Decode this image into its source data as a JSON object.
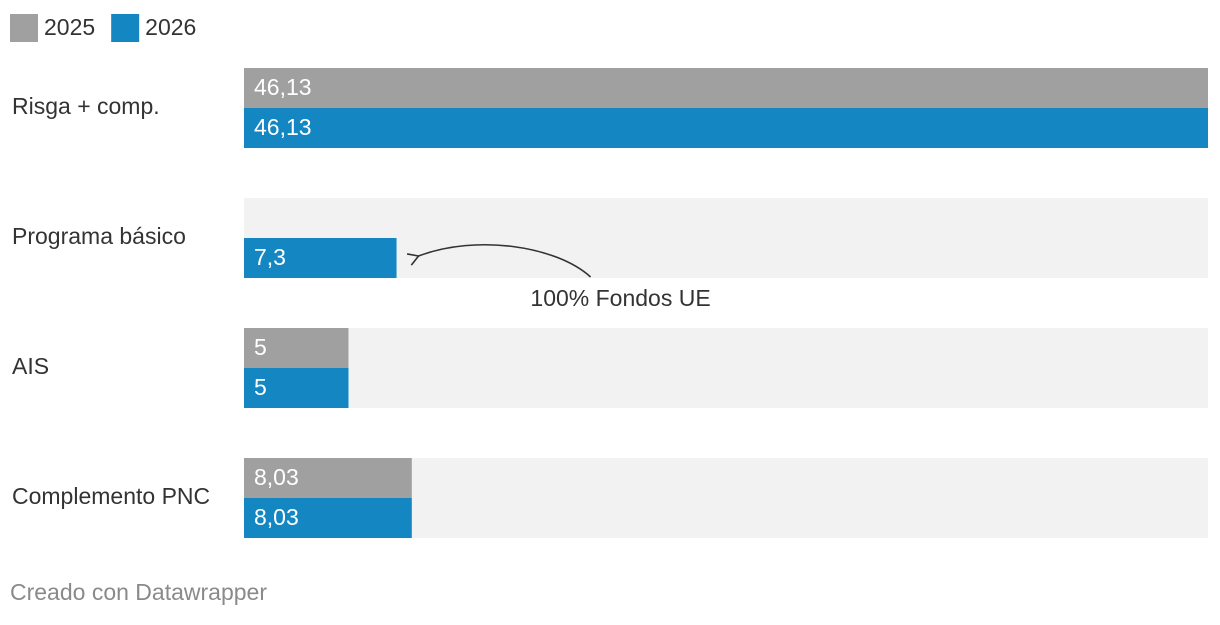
{
  "chart_data": {
    "type": "bar",
    "orientation": "horizontal",
    "categories": [
      "Risga + comp.",
      "Programa básico",
      "AIS",
      "Complemento PNC"
    ],
    "series": [
      {
        "name": "2025",
        "color": "#a0a0a0",
        "values": [
          46.13,
          null,
          5,
          8.03
        ],
        "value_labels": [
          "46,13",
          null,
          "5",
          "8,03"
        ]
      },
      {
        "name": "2026",
        "color": "#1487c2",
        "values": [
          46.13,
          7.3,
          5,
          8.03
        ],
        "value_labels": [
          "46,13",
          "7,3",
          "5",
          "8,03"
        ]
      }
    ],
    "xlim": [
      0,
      46.13
    ],
    "background_color": "#f2f2f2",
    "legend": "top-left",
    "annotations": [
      {
        "text": "100% Fondos UE",
        "category": 1
      }
    ],
    "source": "Creado con Datawrapper"
  }
}
